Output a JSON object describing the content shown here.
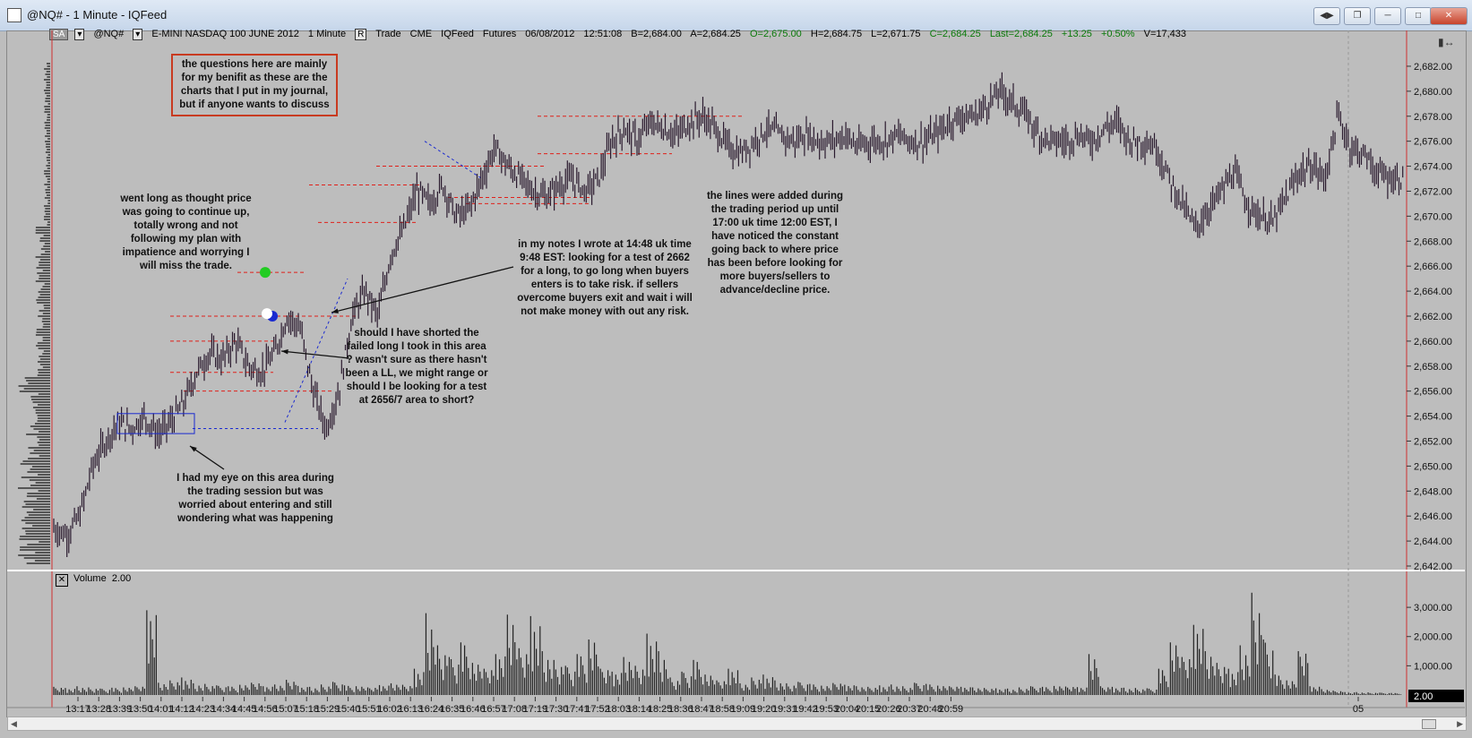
{
  "window": {
    "title": "@NQ# - 1 Minute - IQFeed"
  },
  "toolbar": {
    "sa": "SA",
    "symbol": "@NQ#",
    "instrument": "E-MINI NASDAQ 100 JUNE 2012",
    "interval": "1 Minute",
    "r": "R",
    "mode": "Trade",
    "exchange": "CME",
    "feed": "IQFeed",
    "type": "Futures",
    "date": "06/08/2012",
    "time": "12:51:08",
    "bid": "B=2,684.00",
    "ask": "A=2,684.25",
    "open": "O=2,675.00",
    "high": "H=2,684.75",
    "low": "L=2,671.75",
    "close": "C=2,684.25",
    "last": "Last=2,684.25",
    "change": "+13.25",
    "pct": "+0.50%",
    "volume": "V=17,433"
  },
  "notes": {
    "journal": "the questions here are mainly for my benifit as these are the charts that I put in my journal, but if anyone wants to discuss",
    "went_long": "went long as thought price was going to continue up, totally wrong and not following my plan with impatience and worrying I will miss the trade.",
    "my_notes": "in my notes I wrote at 14:48 uk time 9:48 EST: looking for a test of 2662 for a long, to go long when buyers enters is to take risk. if sellers overcome buyers exit and wait i will not make money with out any risk.",
    "lines_added": "the lines were added during the trading period up until 17:00 uk time 12:00 EST, I have noticed the constant going back to where price has been before looking for more buyers/sellers to advance/decline price.",
    "shorted": "should I have shorted the failed long I took in this area ? wasn't sure as there hasn't been a LL, we might range or should I be looking for a test at 2656/7 area to short?",
    "eye_on": "I had my eye on this area during the trading session but was worried about entering and still wondering what was happening"
  },
  "volume_panel": {
    "label": "Volume",
    "value": "2.00",
    "last_tag": "2.00"
  },
  "colors": {
    "bars": "#2a1a2e",
    "level": "#e0201a",
    "box": "#1a2ad0",
    "entry": "#22cc22"
  },
  "chart_data": [
    {
      "type": "bar",
      "title": "",
      "price_ticks": [
        "2,682.00",
        "2,680.00",
        "2,678.00",
        "2,676.00",
        "2,674.00",
        "2,672.00",
        "2,670.00",
        "2,668.00",
        "2,666.00",
        "2,664.00",
        "2,662.00",
        "2,660.00",
        "2,658.00",
        "2,656.00",
        "2,654.00",
        "2,652.00",
        "2,650.00",
        "2,648.00",
        "2,646.00",
        "2,644.00",
        "2,642.00"
      ],
      "ylim": [
        2642,
        2683
      ],
      "x_ticks": [
        "13:17",
        "13:28",
        "13:39",
        "13:50",
        "14:01",
        "14:12",
        "14:23",
        "14:34",
        "14:45",
        "14:56",
        "15:07",
        "15:18",
        "15:29",
        "15:40",
        "15:51",
        "16:02",
        "16:13",
        "16:24",
        "16:35",
        "16:46",
        "16:57",
        "17:08",
        "17:19",
        "17:30",
        "17:41",
        "17:52",
        "18:03",
        "18:14",
        "18:25",
        "18:36",
        "18:47",
        "18:58",
        "19:09",
        "19:20",
        "19:31",
        "19:42",
        "19:53",
        "20:04",
        "20:15",
        "20:26",
        "20:37",
        "20:48",
        "20:59",
        "05"
      ],
      "close_path": [
        2645,
        2644.5,
        2646,
        2650,
        2652,
        2653.5,
        2653,
        2654,
        2652.5,
        2653.5,
        2655,
        2657.5,
        2659,
        2658.5,
        2660,
        2658,
        2657.5,
        2659,
        2662,
        2661,
        2656,
        2653,
        2656,
        2662,
        2664,
        2662,
        2667,
        2669,
        2672,
        2671,
        2672.5,
        2670,
        2670.5,
        2673,
        2675.5,
        2674,
        2673,
        2672,
        2671.5,
        2672.5,
        2673,
        2672,
        2673,
        2676,
        2677,
        2676,
        2677.5,
        2677,
        2676.5,
        2677.5,
        2678,
        2677,
        2675.5,
        2675,
        2676,
        2677,
        2676.5,
        2676,
        2676.5,
        2676,
        2676,
        2676.5,
        2675.5,
        2676,
        2676,
        2676.5,
        2676,
        2676,
        2676.5,
        2677.5,
        2678,
        2678,
        2679,
        2680,
        2679,
        2678,
        2676.5,
        2676,
        2676,
        2676.5,
        2676,
        2677,
        2677.5,
        2676,
        2676,
        2675.5,
        2673,
        2671,
        2669,
        2670.5,
        2672,
        2673.5,
        2671,
        2670,
        2669.5,
        2671.5,
        2673.5,
        2674,
        2673,
        2678,
        2675.5,
        2675,
        2673.5,
        2673,
        2673
      ]
    },
    {
      "type": "bar",
      "title": "Volume",
      "y_ticks": [
        "3,000.00",
        "2,000.00",
        "1,000.00"
      ],
      "ylim": [
        0,
        3800
      ],
      "values": [
        280,
        240,
        300,
        260,
        220,
        250,
        260,
        300,
        2900,
        420,
        500,
        600,
        400,
        380,
        330,
        300,
        350,
        420,
        300,
        360,
        520,
        310,
        280,
        360,
        450,
        330,
        300,
        260,
        340,
        400,
        350,
        900,
        2800,
        1700,
        1300,
        1800,
        1100,
        900,
        1400,
        2750,
        1600,
        2700,
        1500,
        1200,
        1000,
        1400,
        1900,
        900,
        800,
        1300,
        1000,
        2100,
        1500,
        600,
        800,
        1200,
        700,
        500,
        900,
        400,
        600,
        700,
        500,
        400,
        450,
        380,
        320,
        410,
        350,
        300,
        280,
        330,
        360,
        300,
        420,
        380,
        320,
        300,
        280,
        260,
        240,
        230,
        220,
        260,
        300,
        280,
        310,
        290,
        270,
        1400,
        300,
        280,
        250,
        240,
        230,
        900,
        1800,
        1300,
        2400,
        1500,
        1100,
        900,
        1700,
        3500,
        1900,
        700,
        500,
        1500,
        300,
        200,
        150,
        100,
        100,
        90,
        80,
        70
      ]
    }
  ]
}
